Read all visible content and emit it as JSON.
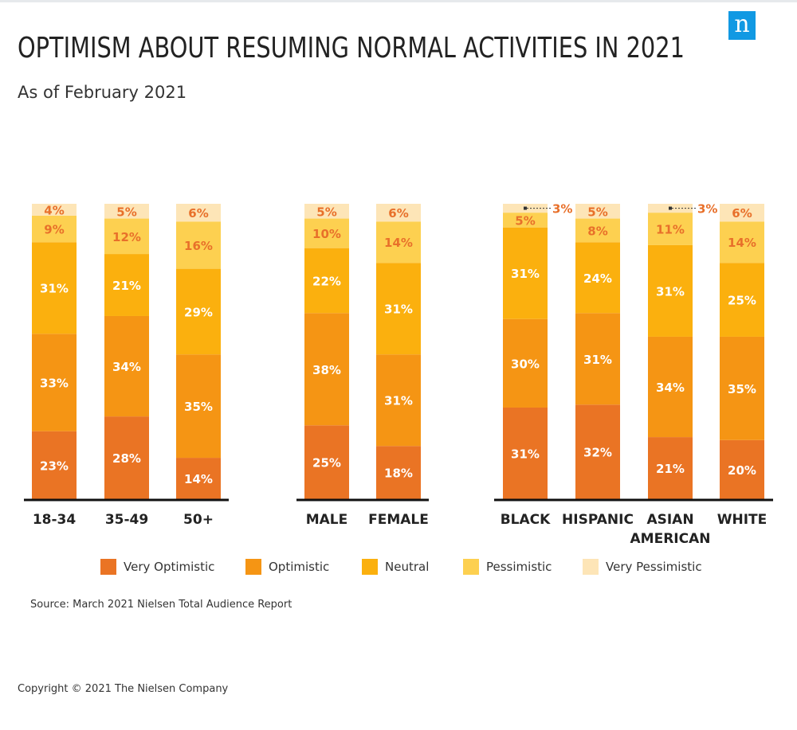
{
  "header": {
    "title": "OPTIMISM ABOUT RESUMING NORMAL ACTIVITIES IN 2021",
    "subtitle": "As of February 2021",
    "logo_letter": "n"
  },
  "footer": {
    "source": "Source: March 2021 Nielsen Total Audience Report",
    "copyright": "Copyright © 2021 The Nielsen Company"
  },
  "colors": {
    "Very Optimistic": "#ea7424",
    "Optimistic": "#f59514",
    "Neutral": "#fbb00e",
    "Pessimistic": "#fdd050",
    "Very Pessimistic": "#fde5b7",
    "label_on_dark": "#ffffff",
    "label_on_light": "#e8702a",
    "brand_blue": "#1199e3"
  },
  "chart_data": {
    "type": "bar",
    "stacked": true,
    "ylim": [
      0,
      100
    ],
    "grid": false,
    "legend_position": "bottom",
    "series_names": [
      "Very Optimistic",
      "Optimistic",
      "Neutral",
      "Pessimistic",
      "Very Pessimistic"
    ],
    "groups": [
      {
        "bars": [
          {
            "category": [
              "18-34"
            ],
            "values": [
              23,
              33,
              31,
              9,
              4
            ],
            "labels": [
              "23%",
              "33%",
              "31%",
              "9%",
              "4%"
            ]
          },
          {
            "category": [
              "35-49"
            ],
            "values": [
              28,
              34,
              21,
              12,
              5
            ],
            "labels": [
              "28%",
              "34%",
              "21%",
              "12%",
              "5%"
            ]
          },
          {
            "category": [
              "50+"
            ],
            "values": [
              14,
              35,
              29,
              16,
              6
            ],
            "labels": [
              "14%",
              "35%",
              "29%",
              "16%",
              "6%"
            ]
          }
        ]
      },
      {
        "bars": [
          {
            "category": [
              "MALE"
            ],
            "values": [
              25,
              38,
              22,
              10,
              5
            ],
            "labels": [
              "25%",
              "38%",
              "22%",
              "10%",
              "5%"
            ]
          },
          {
            "category": [
              "FEMALE"
            ],
            "values": [
              18,
              31,
              31,
              14,
              6
            ],
            "labels": [
              "18%",
              "31%",
              "31%",
              "14%",
              "6%"
            ]
          }
        ]
      },
      {
        "bars": [
          {
            "category": [
              "BLACK"
            ],
            "values": [
              31,
              30,
              31,
              5,
              3
            ],
            "labels": [
              "31%",
              "30%",
              "31%",
              "5%",
              "3%"
            ]
          },
          {
            "category": [
              "HISPANIC"
            ],
            "values": [
              32,
              31,
              24,
              8,
              5
            ],
            "labels": [
              "32%",
              "31%",
              "24%",
              "8%",
              "5%"
            ]
          },
          {
            "category": [
              "ASIAN",
              "AMERICAN"
            ],
            "values": [
              21,
              34,
              31,
              11,
              3
            ],
            "labels": [
              "21%",
              "34%",
              "31%",
              "11%",
              "3%"
            ]
          },
          {
            "category": [
              "WHITE"
            ],
            "values": [
              20,
              35,
              25,
              14,
              6
            ],
            "labels": [
              "20%",
              "35%",
              "25%",
              "14%",
              "6%"
            ]
          }
        ]
      }
    ]
  }
}
